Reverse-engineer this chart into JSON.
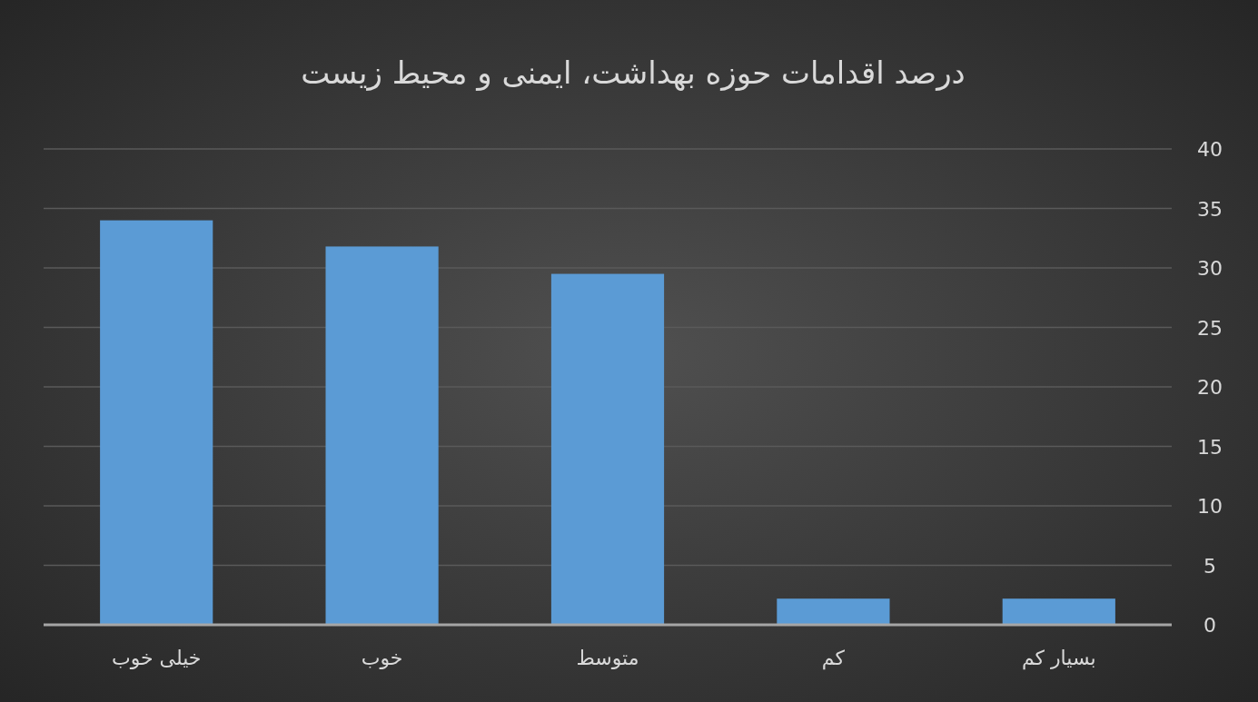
{
  "chart_data": {
    "type": "bar",
    "title": "درصد اقدامات حوزه بهداشت، ایمنی و محیط زیست",
    "categories": [
      "خیلی خوب",
      "خوب",
      "متوسط",
      "کم",
      "بسیار کم"
    ],
    "values": [
      34,
      31.8,
      29.5,
      2.2,
      2.2
    ],
    "color": "#5b9bd5",
    "ylim": [
      0,
      40
    ],
    "yticks": [
      0,
      5,
      10,
      15,
      20,
      25,
      30,
      35,
      40
    ],
    "grid": "y"
  }
}
